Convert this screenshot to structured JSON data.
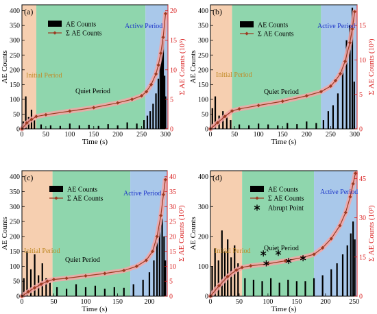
{
  "colors": {
    "initial": "#f6cfb0",
    "quiet": "#8fd6ad",
    "active": "#a9c8ea",
    "bars": "#000000",
    "cumulative": "#9c3a21",
    "cumulative_band": "#f4a6a6",
    "right_axis": "#d91e1e",
    "initial_label": "#c08a26",
    "active_label": "#1b34c8",
    "abrupt": "#000000"
  },
  "chart_data": [
    {
      "type": "bar",
      "panel_label": "(a)",
      "xlabel": "Time (s)",
      "ylabel_left": "AE Counts",
      "ylabel_right": "Σ AE Counts (10³)",
      "xlim": [
        0,
        305
      ],
      "ylim_left": [
        0,
        420
      ],
      "ylim_right": [
        0,
        21
      ],
      "xticks": [
        0,
        50,
        100,
        150,
        200,
        250,
        300
      ],
      "yticks_left": [
        0,
        50,
        100,
        150,
        200,
        250,
        300,
        350,
        400
      ],
      "yticks_right": [
        0,
        5,
        10,
        15,
        20
      ],
      "regions": [
        {
          "name": "Initial Period",
          "start": 0,
          "end": 30
        },
        {
          "name": "Quiet Period",
          "start": 30,
          "end": 258
        },
        {
          "name": "Active Period",
          "start": 258,
          "end": 305
        }
      ],
      "legend": [
        "AE Counts",
        "Σ AE Counts"
      ],
      "ae_counts": {
        "x": [
          3,
          8,
          14,
          20,
          26,
          40,
          60,
          80,
          100,
          120,
          140,
          160,
          180,
          200,
          220,
          240,
          255,
          262,
          268,
          274,
          280,
          285,
          289,
          292,
          295,
          298,
          300
        ],
        "y": [
          25,
          110,
          40,
          65,
          30,
          15,
          12,
          10,
          18,
          12,
          14,
          10,
          16,
          12,
          22,
          18,
          30,
          45,
          60,
          85,
          120,
          170,
          220,
          260,
          300,
          180,
          110
        ]
      },
      "cumulative": {
        "x": [
          0,
          10,
          20,
          30,
          50,
          100,
          150,
          200,
          230,
          250,
          260,
          270,
          280,
          285,
          290,
          295,
          300
        ],
        "y": [
          0,
          1.0,
          1.6,
          2.1,
          2.4,
          3.0,
          3.6,
          4.4,
          5.0,
          5.6,
          6.3,
          7.5,
          9.3,
          10.8,
          12.8,
          15.5,
          19.5
        ]
      }
    },
    {
      "type": "bar",
      "panel_label": "(b)",
      "xlabel": "Time (s)",
      "ylabel_left": "AE Counts",
      "ylabel_right": "Σ AE Counts (10³)",
      "xlim": [
        0,
        305
      ],
      "ylim_left": [
        0,
        420
      ],
      "ylim_right": [
        0,
        18
      ],
      "xticks": [
        0,
        50,
        100,
        150,
        200,
        250,
        300
      ],
      "yticks_left": [
        0,
        50,
        100,
        150,
        200,
        250,
        300,
        350,
        400
      ],
      "yticks_right": [
        0,
        5,
        10,
        15
      ],
      "regions": [
        {
          "name": "Initial Period",
          "start": 0,
          "end": 45
        },
        {
          "name": "Quiet Period",
          "start": 45,
          "end": 230
        },
        {
          "name": "Active Period",
          "start": 230,
          "end": 305
        }
      ],
      "legend": [
        "AE Counts",
        "Σ AE Counts"
      ],
      "ae_counts": {
        "x": [
          4,
          10,
          18,
          26,
          34,
          42,
          60,
          80,
          100,
          120,
          140,
          160,
          180,
          200,
          220,
          235,
          245,
          255,
          265,
          275,
          283,
          290,
          295,
          299
        ],
        "y": [
          70,
          110,
          45,
          60,
          40,
          30,
          15,
          12,
          18,
          15,
          12,
          20,
          16,
          25,
          20,
          30,
          60,
          80,
          120,
          200,
          300,
          350,
          410,
          160
        ]
      },
      "cumulative": {
        "x": [
          0,
          15,
          30,
          45,
          60,
          100,
          150,
          200,
          230,
          250,
          260,
          270,
          280,
          290,
          295,
          300
        ],
        "y": [
          0,
          0.9,
          1.8,
          2.6,
          2.9,
          3.4,
          4.0,
          4.8,
          5.4,
          6.2,
          7.0,
          8.0,
          9.8,
          12.5,
          14.5,
          17.0
        ]
      }
    },
    {
      "type": "bar",
      "panel_label": "(c)",
      "xlabel": "Time (s)",
      "ylabel_left": "AE Counts",
      "ylabel_right": "Σ AE Counts (10³)",
      "xlim": [
        0,
        228
      ],
      "ylim_left": [
        0,
        420
      ],
      "ylim_right": [
        0,
        42
      ],
      "xticks": [
        0,
        50,
        100,
        150,
        200
      ],
      "yticks_left": [
        0,
        50,
        100,
        150,
        200,
        250,
        300,
        350,
        400
      ],
      "yticks_right": [
        0,
        5,
        10,
        15,
        20,
        25,
        30,
        35,
        40
      ],
      "regions": [
        {
          "name": "Initial Period",
          "start": 0,
          "end": 48
        },
        {
          "name": "Quiet Period",
          "start": 48,
          "end": 170
        },
        {
          "name": "Active Period",
          "start": 170,
          "end": 228
        }
      ],
      "legend": [
        "AE Counts",
        "Σ AE Counts"
      ],
      "ae_counts": {
        "x": [
          3,
          8,
          14,
          20,
          26,
          32,
          38,
          44,
          55,
          70,
          85,
          100,
          115,
          130,
          145,
          160,
          175,
          190,
          200,
          207,
          212,
          216,
          220,
          223,
          225
        ],
        "y": [
          60,
          150,
          90,
          140,
          70,
          110,
          60,
          45,
          30,
          25,
          40,
          30,
          35,
          25,
          30,
          28,
          40,
          55,
          80,
          120,
          180,
          230,
          260,
          200,
          120
        ]
      },
      "cumulative": {
        "x": [
          0,
          10,
          20,
          30,
          40,
          50,
          70,
          100,
          130,
          160,
          180,
          195,
          205,
          212,
          218,
          222,
          225
        ],
        "y": [
          0,
          1.5,
          2.8,
          4.0,
          5.0,
          5.6,
          6.0,
          6.8,
          7.6,
          8.6,
          10.0,
          12.0,
          15.0,
          20.0,
          27.0,
          34.0,
          39.0
        ]
      }
    },
    {
      "type": "bar",
      "panel_label": "(d)",
      "xlabel": "Time (s)",
      "ylabel_left": "AE Counts",
      "ylabel_right": "Σ AE Counts (10³)",
      "xlim": [
        0,
        255
      ],
      "ylim_left": [
        0,
        420
      ],
      "ylim_right": [
        0,
        48
      ],
      "xticks": [
        0,
        50,
        100,
        150,
        200,
        250
      ],
      "yticks_left": [
        0,
        100,
        200,
        300,
        400
      ],
      "yticks_right": [
        0,
        15,
        30,
        45
      ],
      "regions": [
        {
          "name": "Initial Period",
          "start": 0,
          "end": 55
        },
        {
          "name": "Quiet Period",
          "start": 55,
          "end": 180
        },
        {
          "name": "Active Period",
          "start": 180,
          "end": 255
        }
      ],
      "legend": [
        "AE Counts",
        "Σ AE Counts",
        "Abrupt Point"
      ],
      "ae_counts": {
        "x": [
          3,
          8,
          14,
          20,
          25,
          30,
          36,
          42,
          48,
          60,
          75,
          90,
          105,
          120,
          135,
          150,
          165,
          180,
          195,
          210,
          220,
          230,
          238,
          244,
          248,
          251
        ],
        "y": [
          100,
          160,
          120,
          220,
          150,
          190,
          130,
          170,
          110,
          60,
          55,
          50,
          60,
          45,
          55,
          50,
          50,
          60,
          70,
          90,
          110,
          140,
          170,
          210,
          250,
          190
        ]
      },
      "cumulative": {
        "x": [
          0,
          15,
          30,
          45,
          55,
          70,
          100,
          130,
          160,
          180,
          195,
          210,
          225,
          235,
          243,
          248,
          252
        ],
        "y": [
          0,
          4.0,
          7.5,
          10.0,
          11.0,
          11.6,
          12.4,
          13.5,
          14.8,
          16.0,
          18.5,
          22.0,
          27.0,
          32.0,
          38.0,
          43.0,
          47.0
        ]
      },
      "abrupt_points": {
        "x": [
          92,
          97,
          118,
          136,
          161
        ],
        "y": [
          143,
          110,
          145,
          118,
          127
        ]
      }
    }
  ]
}
